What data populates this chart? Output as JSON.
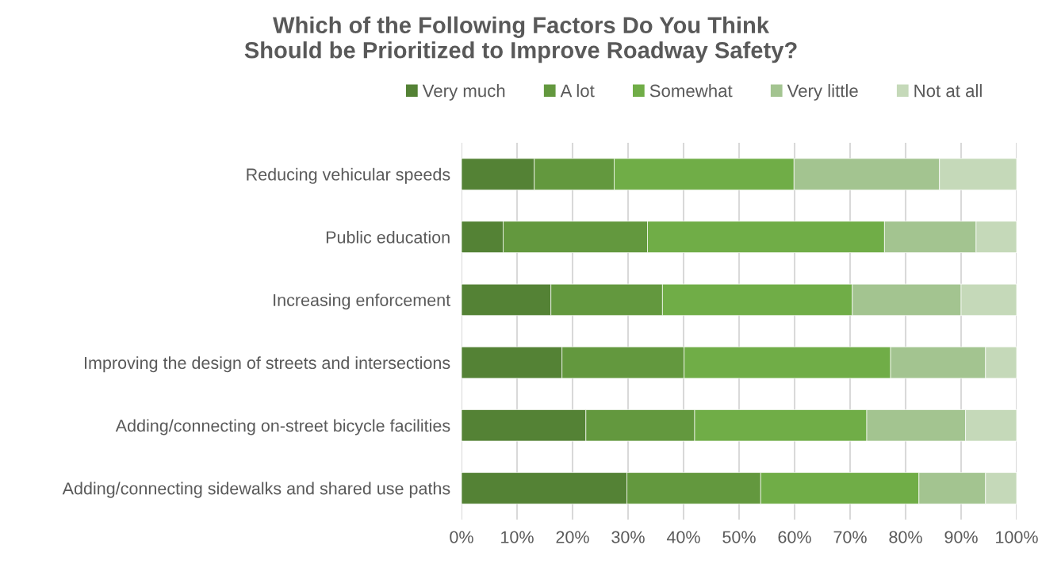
{
  "chart_data": {
    "type": "bar",
    "orientation": "horizontal",
    "stacked": true,
    "title": "Which of the Following Factors Do You Think\nShould be Prioritized to Improve Roadway Safety?",
    "categories": [
      "Reducing vehicular speeds",
      "Public education",
      "Increasing enforcement",
      "Improving the design of streets and intersections",
      "Adding/connecting on-street bicycle facilities",
      "Adding/connecting sidewalks and shared use paths"
    ],
    "series": [
      {
        "name": "Very much",
        "color": "#548235",
        "values": [
          13.1,
          7.5,
          16.1,
          18.1,
          22.4,
          29.8
        ]
      },
      {
        "name": "A lot",
        "color": "#63983e",
        "values": [
          14.4,
          26.0,
          20.1,
          22.0,
          19.6,
          24.1
        ]
      },
      {
        "name": "Somewhat",
        "color": "#70ad47",
        "values": [
          32.4,
          42.7,
          34.2,
          37.2,
          31.0,
          28.5
        ]
      },
      {
        "name": "Very little",
        "color": "#a3c490",
        "values": [
          26.2,
          16.5,
          19.6,
          17.1,
          17.8,
          12.0
        ]
      },
      {
        "name": "Not at all",
        "color": "#c5d9b9",
        "values": [
          13.9,
          7.3,
          10.0,
          5.6,
          9.2,
          5.6
        ]
      }
    ],
    "xlim": [
      0,
      100
    ],
    "xticks": [
      {
        "value": 0,
        "label": "0%"
      },
      {
        "value": 10,
        "label": "10%"
      },
      {
        "value": 20,
        "label": "20%"
      },
      {
        "value": 30,
        "label": "30%"
      },
      {
        "value": 40,
        "label": "40%"
      },
      {
        "value": 50,
        "label": "50%"
      },
      {
        "value": 60,
        "label": "60%"
      },
      {
        "value": 70,
        "label": "70%"
      },
      {
        "value": 80,
        "label": "80%"
      },
      {
        "value": 90,
        "label": "90%"
      },
      {
        "value": 100,
        "label": "100%"
      }
    ],
    "grid": "x",
    "legend": "top"
  }
}
